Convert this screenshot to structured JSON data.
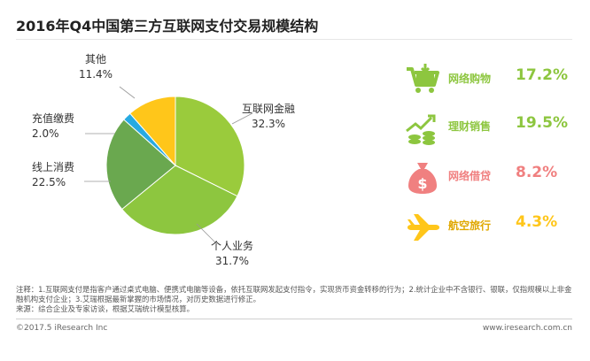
{
  "title": "2016年Q4中国第三方互联网支付交易规模结构",
  "colors": {
    "lime": "#8dc63f",
    "green": "#6aa84f",
    "cyan": "#27aae1",
    "yellow": "#ffc61a",
    "pink": "#f08080",
    "label_green": "#7cb342",
    "label_orange": "#e67e22"
  },
  "chart_data": {
    "type": "pie",
    "title": "2016年Q4中国第三方互联网支付交易规模结构",
    "slices": [
      {
        "name": "互联网金融",
        "value": 32.3,
        "value_label": "32.3%",
        "color": "#8dc63f"
      },
      {
        "name": "个人业务",
        "value": 31.7,
        "value_label": "31.7%",
        "color": "#8dc63f"
      },
      {
        "name": "线上消费",
        "value": 22.5,
        "value_label": "22.5%",
        "color": "#6aa84f"
      },
      {
        "name": "充值缴费",
        "value": 2.0,
        "value_label": "2.0%",
        "color": "#27aae1"
      },
      {
        "name": "其他",
        "value": 11.4,
        "value_label": "11.4%",
        "color": "#ffc61a"
      }
    ]
  },
  "side_items": [
    {
      "icon": "shopping-cart-icon",
      "label": "网络购物",
      "value": "17.2%",
      "color": "#8dc63f"
    },
    {
      "icon": "finance-coins-icon",
      "label": "理财销售",
      "value": "19.5%",
      "color": "#8dc63f"
    },
    {
      "icon": "money-bag-icon",
      "label": "网络借贷",
      "value": "8.2%",
      "color": "#f08080"
    },
    {
      "icon": "airplane-icon",
      "label": "航空旅行",
      "value": "4.3%",
      "color": "#ffc61a"
    }
  ],
  "note": "注释：1.互联网支付是指客户通过桌式电脑、便携式电脑等设备，依托互联网发起支付指令，实现货币资金转移的行为；2.统计企业中不含银行、银联，仅指规模以上非金融机构支付企业；3.艾瑞根据最新掌握的市场情况，对历史数据进行修正。",
  "source": "来源：综合企业及专家访谈，根据艾瑞统计模型核算。",
  "footer": {
    "copyright": "©2017.5 iResearch Inc",
    "website": "www.iresearch.com.cn"
  }
}
